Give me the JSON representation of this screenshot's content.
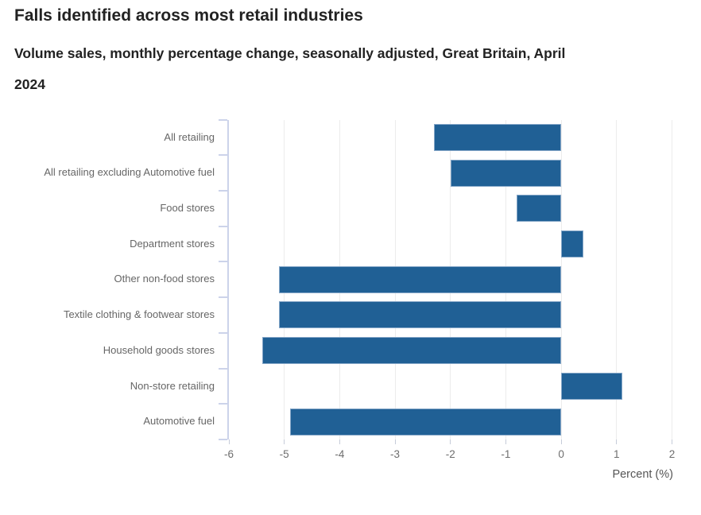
{
  "chart_data": {
    "type": "bar",
    "orientation": "horizontal",
    "title": "Falls identified across most retail industries",
    "subtitle": "Volume sales, monthly percentage change, seasonally adjusted, Great Britain, April 2024",
    "categories": [
      "All retailing",
      "All retailing excluding Automotive fuel",
      "Food stores",
      "Department stores",
      "Other non-food stores",
      "Textile clothing & footwear stores",
      "Household goods stores",
      "Non-store retailing",
      "Automotive fuel"
    ],
    "values": [
      -2.3,
      -2.0,
      -0.8,
      0.4,
      -5.1,
      -5.1,
      -5.4,
      1.1,
      -4.9
    ],
    "xlabel": "Percent (%)",
    "xlim": [
      -6,
      2
    ],
    "xticks": [
      -6,
      -5,
      -4,
      -3,
      -2,
      -1,
      0,
      1,
      2
    ],
    "grid": "vertical",
    "legend": "none",
    "bar_color": "#206095",
    "bar_border_color": "#86a7c8",
    "axis_color": "#ccd3ea",
    "gridline_color": "#ececec",
    "category_label_color": "#666666",
    "tick_label_color": "#6e6e6e",
    "title_color": "#222222"
  }
}
